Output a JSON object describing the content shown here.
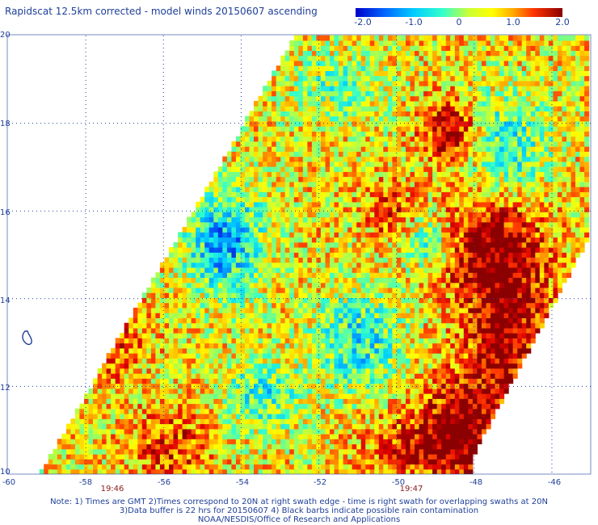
{
  "title": "Rapidscat 12.5km corrected - model winds 20150607 ascending",
  "colorbar": {
    "min": -2.0,
    "max": 2.0,
    "labels": [
      "-2.0",
      "-1.0",
      "0",
      "1.0",
      "2.0"
    ],
    "colors": [
      "#0000c8",
      "#0066ff",
      "#00ccff",
      "#33ffcc",
      "#99ff66",
      "#ffff33",
      "#ffcc00",
      "#ff6600",
      "#e00000",
      "#8b0000"
    ]
  },
  "map": {
    "lon_range": [
      -60,
      -45
    ],
    "lat_range": [
      10,
      20
    ],
    "x_ticks": [
      "-60",
      "-58",
      "-56",
      "-54",
      "-52",
      "-50",
      "-48",
      "-46"
    ],
    "y_ticks": [
      "20",
      "18",
      "16",
      "14",
      "12",
      "10"
    ],
    "gridlines": "dotted",
    "swath_times": [
      {
        "label": "19:46",
        "lon": -57.4
      },
      {
        "label": "19:47",
        "lon": -49.6
      }
    ],
    "swath_shape": "parallelogram, left edge from -59.2W at 10N to -52.5W at 20N, right edge from -48.0W at 10N to -45.0W at 15.2N",
    "land_feature": "small island outline near 13.2N 59.5W"
  },
  "notes": {
    "line1": "Note: 1) Times are GMT 2)Times correspond to 20N at right swath edge - time is right swath for overlapping swaths at 20N",
    "line2": "3)Data buffer is 22 hrs for 20150607 4) Black barbs indicate possible rain contamination",
    "line3": "NOAA/NESDIS/Office of Research and Applications"
  }
}
